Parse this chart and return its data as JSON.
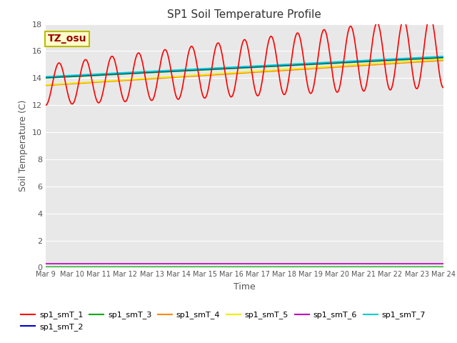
{
  "title": "SP1 Soil Temperature Profile",
  "xlabel": "Time",
  "ylabel": "Soil Temperature (C)",
  "ylim": [
    0,
    18
  ],
  "xlim_days": [
    0,
    15
  ],
  "x_tick_labels": [
    "Mar 9",
    "Mar 10",
    "Mar 11",
    "Mar 12",
    "Mar 13",
    "Mar 14",
    "Mar 15",
    "Mar 16",
    "Mar 17",
    "Mar 18",
    "Mar 19",
    "Mar 20",
    "Mar 21",
    "Mar 22",
    "Mar 23",
    "Mar 24"
  ],
  "annotation": "TZ_osu",
  "annotation_color": "#990000",
  "annotation_bg": "#ffffcc",
  "annotation_border": "#bbbb00",
  "plot_bg_color": "#e8e8e8",
  "fig_bg_color": "#ffffff",
  "grid_color": "#ffffff",
  "series_colors": {
    "sp1_smT_1": "#ff0000",
    "sp1_smT_2": "#0000cc",
    "sp1_smT_3": "#00aa00",
    "sp1_smT_4": "#ff8800",
    "sp1_smT_5": "#eeee00",
    "sp1_smT_6": "#bb00bb",
    "sp1_smT_7": "#00cccc"
  },
  "title_fontsize": 11,
  "axis_label_fontsize": 9,
  "tick_fontsize": 8,
  "legend_fontsize": 8
}
